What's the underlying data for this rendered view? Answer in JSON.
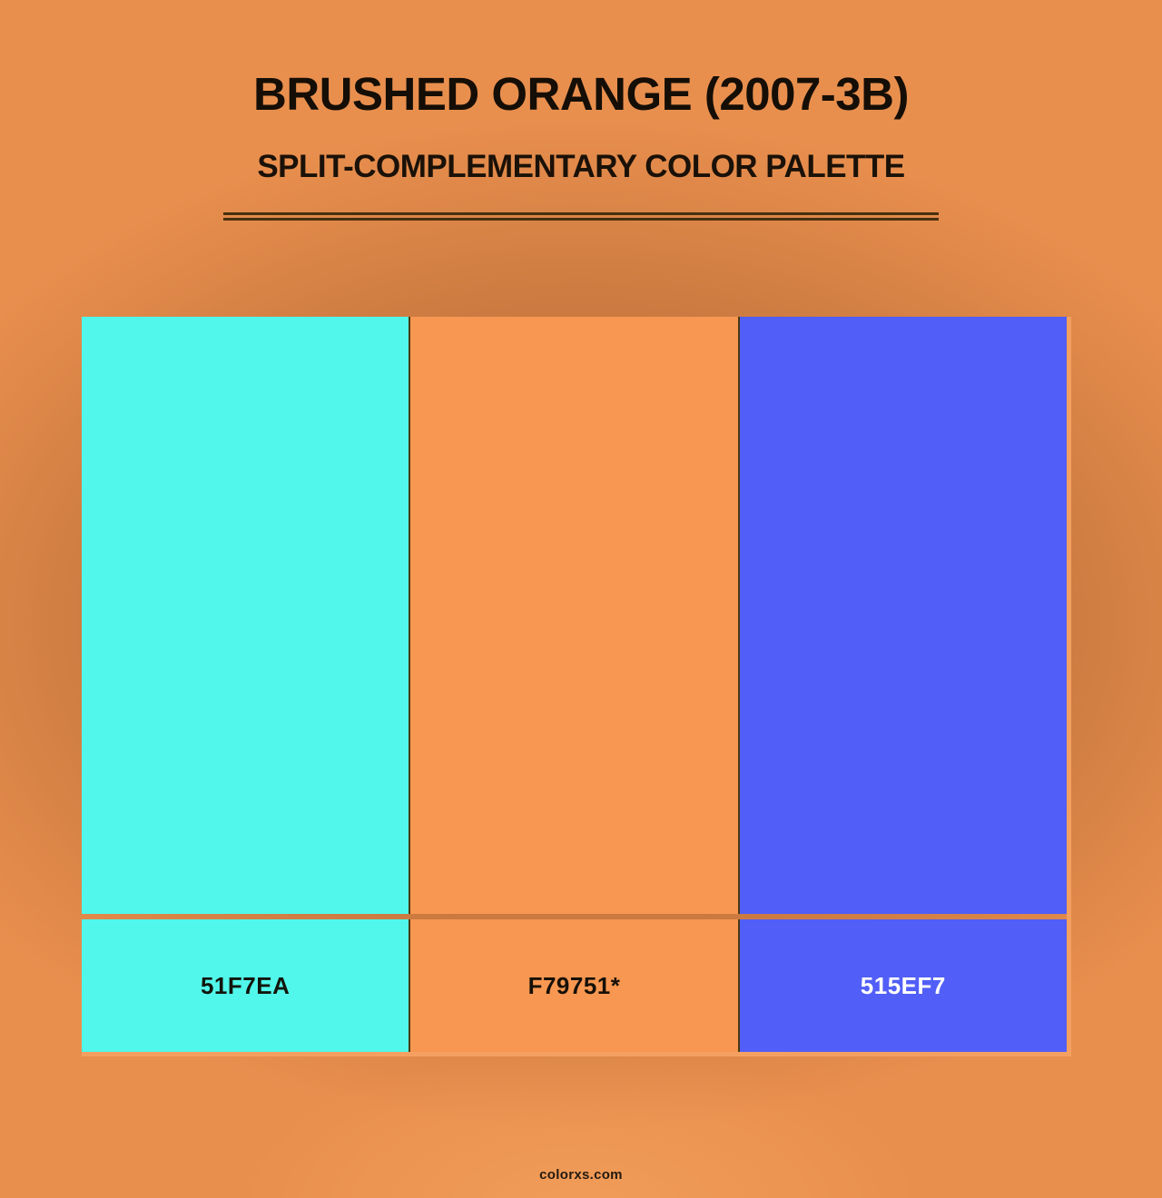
{
  "header": {
    "title": "BRUSHED ORANGE (2007-3B)",
    "subtitle": "SPLIT-COMPLEMENTARY COLOR PALETTE"
  },
  "palette": {
    "background_base": "#E98F4E",
    "background_shade": "#C27338",
    "highlight_border_color": "#F4A061",
    "divider_color": "#4a3a12",
    "rule_color": "#46300f",
    "swatches": [
      {
        "name": "cyan-swatch",
        "hex_label": "51F7EA",
        "color": "#51F7EA",
        "label_color": "#12150c"
      },
      {
        "name": "orange-swatch",
        "hex_label": "F79751*",
        "color": "#F79751",
        "label_color": "#171009"
      },
      {
        "name": "blue-swatch",
        "hex_label": "515EF7",
        "color": "#515EF7",
        "label_color": "#FFFFFF"
      }
    ]
  },
  "footer": {
    "text": "colorxs.com"
  }
}
